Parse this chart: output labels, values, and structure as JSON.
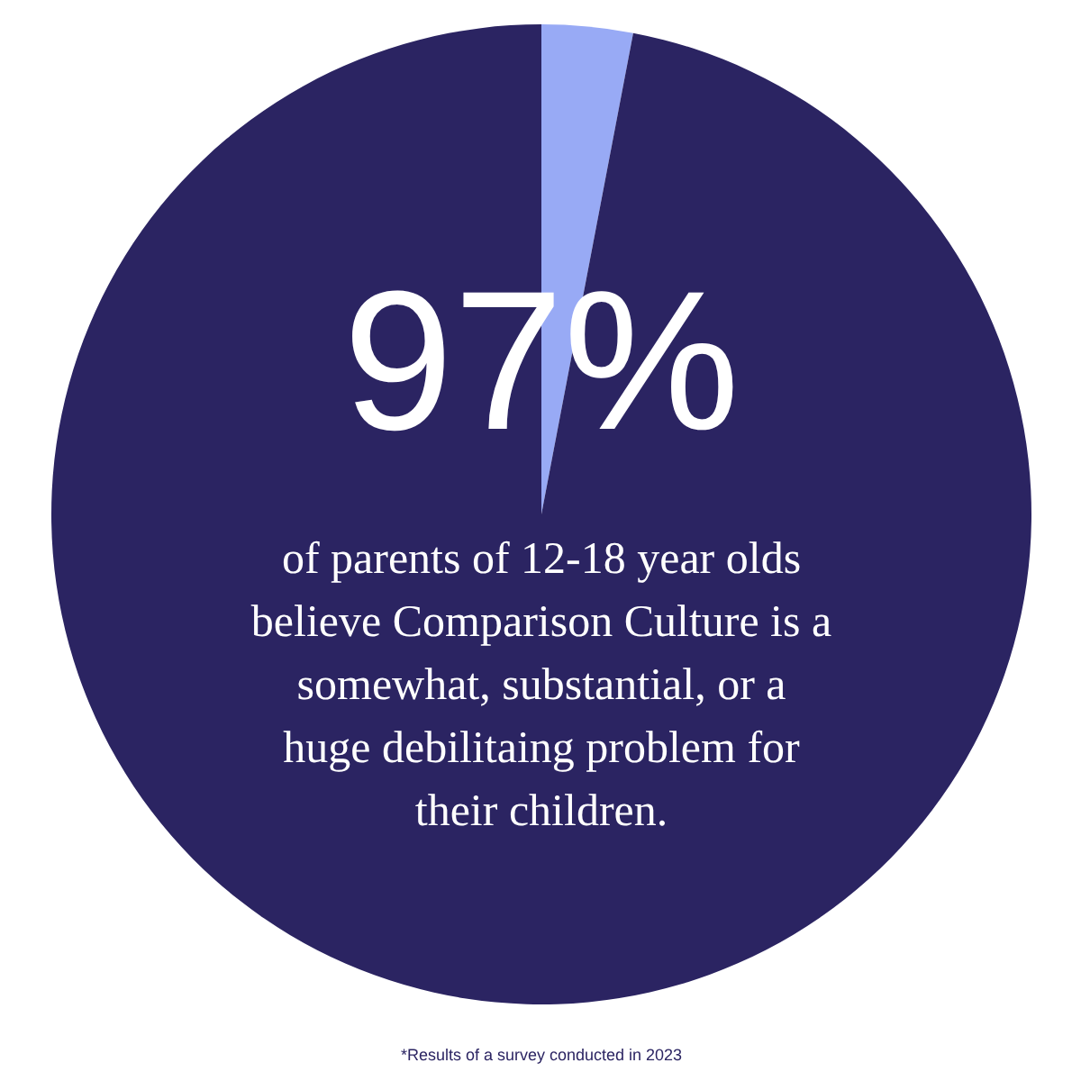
{
  "chart_data": {
    "type": "pie",
    "categories": [
      null,
      null
    ],
    "values": [
      3,
      97
    ],
    "colors": [
      "#98aaf5",
      "#2b2462"
    ],
    "value_labels": [
      null,
      "97%"
    ],
    "annotations": [
      "of parents of 12-18 year olds believe Comparison Culture is a somewhat, substantial, or a huge debilitaing problem for their children.",
      "*Results of a survey conducted in 2023"
    ]
  }
}
